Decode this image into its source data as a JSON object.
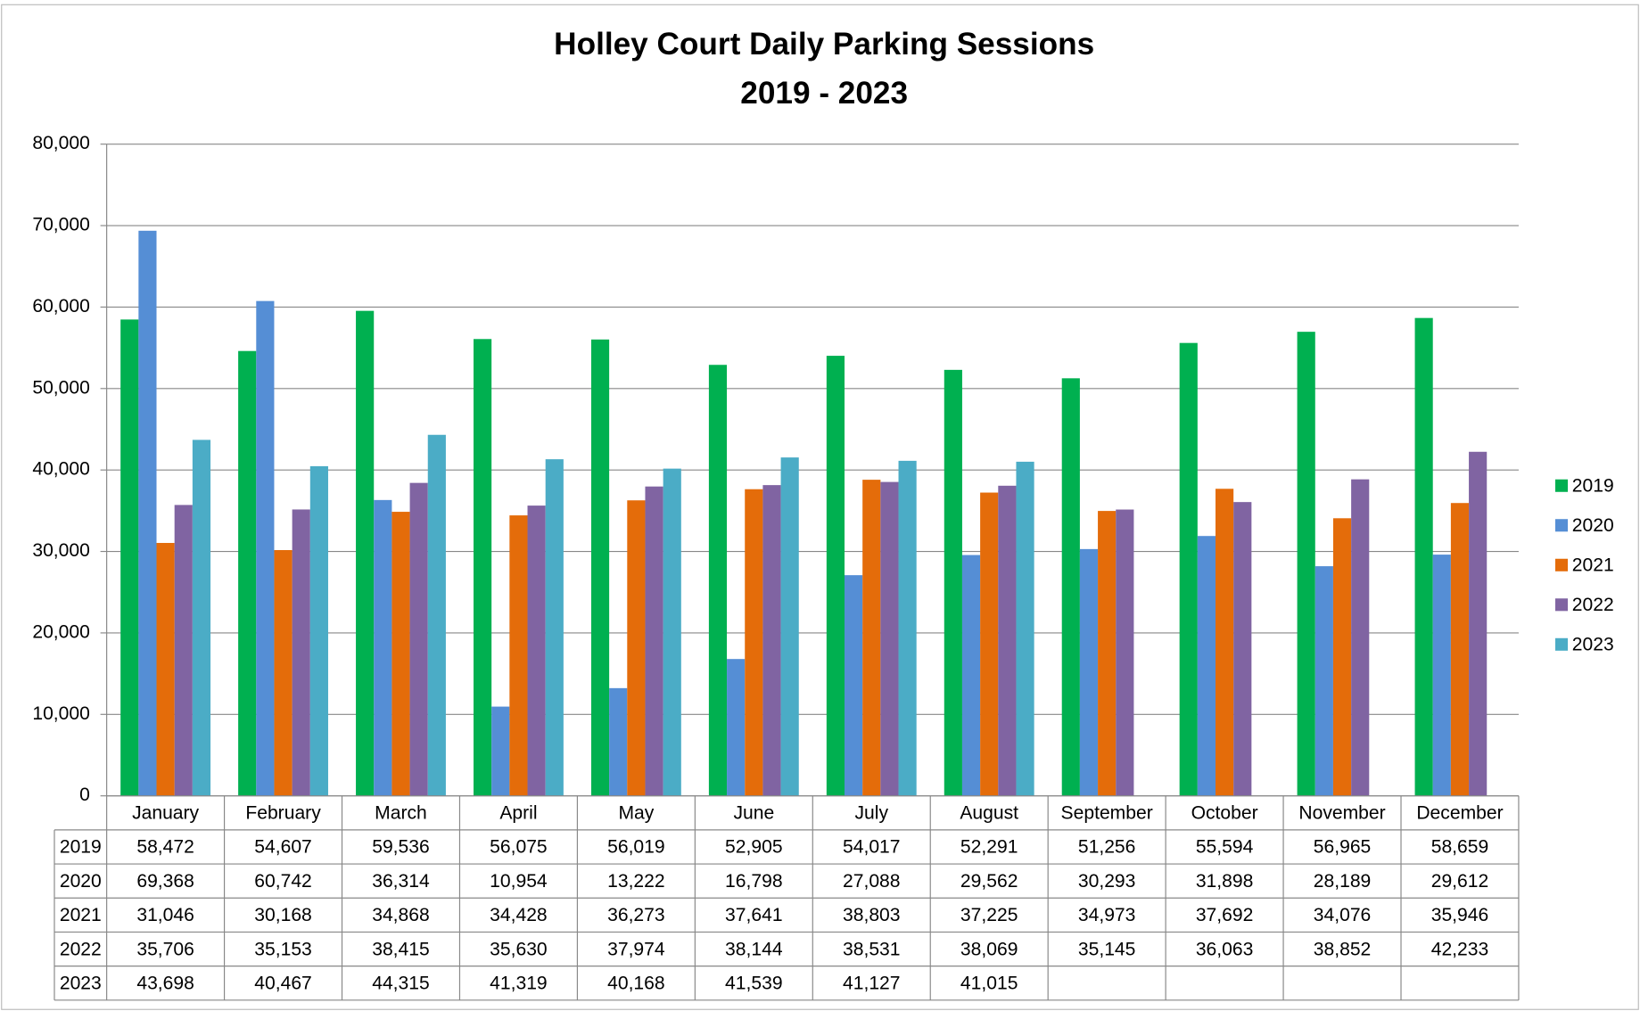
{
  "chart_data": {
    "type": "bar",
    "title": "Holley Court Daily Parking Sessions",
    "subtitle": "2019 - 2023",
    "categories": [
      "January",
      "February",
      "March",
      "April",
      "May",
      "June",
      "July",
      "August",
      "September",
      "October",
      "November",
      "December"
    ],
    "series": [
      {
        "name": "2019",
        "color": "#00b050",
        "values": [
          58472,
          54607,
          59536,
          56075,
          56019,
          52905,
          54017,
          52291,
          51256,
          55594,
          56965,
          58659
        ],
        "value_labels": [
          "58,472",
          "54,607",
          "59,536",
          "56,075",
          "56,019",
          "52,905",
          "54,017",
          "52,291",
          "51,256",
          "55,594",
          "56,965",
          "58,659"
        ]
      },
      {
        "name": "2020",
        "color": "#558ed5",
        "values": [
          69368,
          60742,
          36314,
          10954,
          13222,
          16798,
          27088,
          29562,
          30293,
          31898,
          28189,
          29612
        ],
        "value_labels": [
          "69,368",
          "60,742",
          "36,314",
          "10,954",
          "13,222",
          "16,798",
          "27,088",
          "29,562",
          "30,293",
          "31,898",
          "28,189",
          "29,612"
        ]
      },
      {
        "name": "2021",
        "color": "#e46c0a",
        "values": [
          31046,
          30168,
          34868,
          34428,
          36273,
          37641,
          38803,
          37225,
          34973,
          37692,
          34076,
          35946
        ],
        "value_labels": [
          "31,046",
          "30,168",
          "34,868",
          "34,428",
          "36,273",
          "37,641",
          "38,803",
          "37,225",
          "34,973",
          "37,692",
          "34,076",
          "35,946"
        ]
      },
      {
        "name": "2022",
        "color": "#8064a2",
        "values": [
          35706,
          35153,
          38415,
          35630,
          37974,
          38144,
          38531,
          38069,
          35145,
          36063,
          38852,
          42233
        ],
        "value_labels": [
          "35,706",
          "35,153",
          "38,415",
          "35,630",
          "37,974",
          "38,144",
          "38,531",
          "38,069",
          "35,145",
          "36,063",
          "38,852",
          "42,233"
        ]
      },
      {
        "name": "2023",
        "color": "#4bacc6",
        "values": [
          43698,
          40467,
          44315,
          41319,
          40168,
          41539,
          41127,
          41015,
          null,
          null,
          null,
          null
        ],
        "value_labels": [
          "43,698",
          "40,467",
          "44,315",
          "41,319",
          "40,168",
          "41,539",
          "41,127",
          "41,015",
          null,
          null,
          null,
          null
        ]
      }
    ],
    "ylim": [
      0,
      80000
    ],
    "yticks": [
      0,
      {
        "value": 10000,
        "label": "10,000"
      },
      {
        "value": 20000,
        "label": "20,000"
      },
      {
        "value": 30000,
        "label": "30,000"
      },
      {
        "value": 40000,
        "label": "40,000"
      },
      {
        "value": 50000,
        "label": "50,000"
      },
      {
        "value": 60000,
        "label": "60,000"
      },
      {
        "value": 70000,
        "label": "70,000"
      },
      {
        "value": 80000,
        "label": "80,000"
      }
    ],
    "grid": true,
    "legend": "right"
  }
}
